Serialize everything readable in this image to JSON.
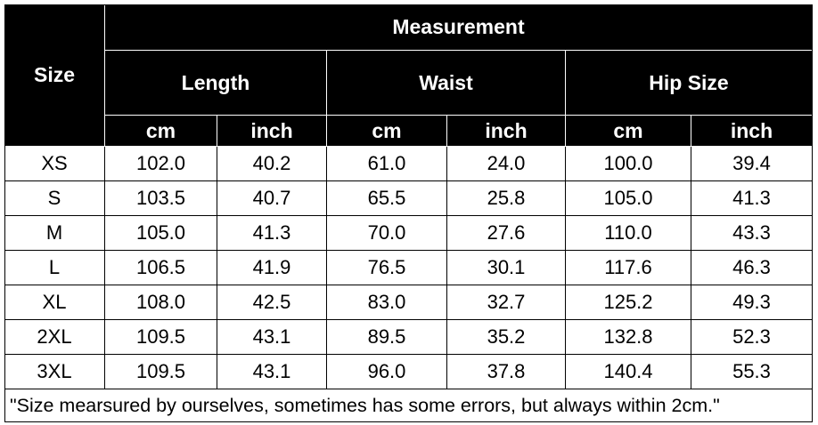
{
  "table": {
    "size_header": "Size",
    "measurement_header": "Measurement",
    "groups": [
      {
        "label": "Length",
        "units": [
          "cm",
          "inch"
        ]
      },
      {
        "label": "Waist",
        "units": [
          "cm",
          "inch"
        ]
      },
      {
        "label": "Hip Size",
        "units": [
          "cm",
          "inch"
        ]
      }
    ],
    "rows": [
      [
        "XS",
        "102.0",
        "40.2",
        "61.0",
        "24.0",
        "100.0",
        "39.4"
      ],
      [
        "S",
        "103.5",
        "40.7",
        "65.5",
        "25.8",
        "105.0",
        "41.3"
      ],
      [
        "M",
        "105.0",
        "41.3",
        "70.0",
        "27.6",
        "110.0",
        "43.3"
      ],
      [
        "L",
        "106.5",
        "41.9",
        "76.5",
        "30.1",
        "117.6",
        "46.3"
      ],
      [
        "XL",
        "108.0",
        "42.5",
        "83.0",
        "32.7",
        "125.2",
        "49.3"
      ],
      [
        "2XL",
        "109.5",
        "43.1",
        "89.5",
        "35.2",
        "132.8",
        "52.3"
      ],
      [
        "3XL",
        "109.5",
        "43.1",
        "96.0",
        "37.8",
        "140.4",
        "55.3"
      ]
    ],
    "note": "\"Size mearsured by ourselves, sometimes has some errors, but always within 2cm.\""
  }
}
